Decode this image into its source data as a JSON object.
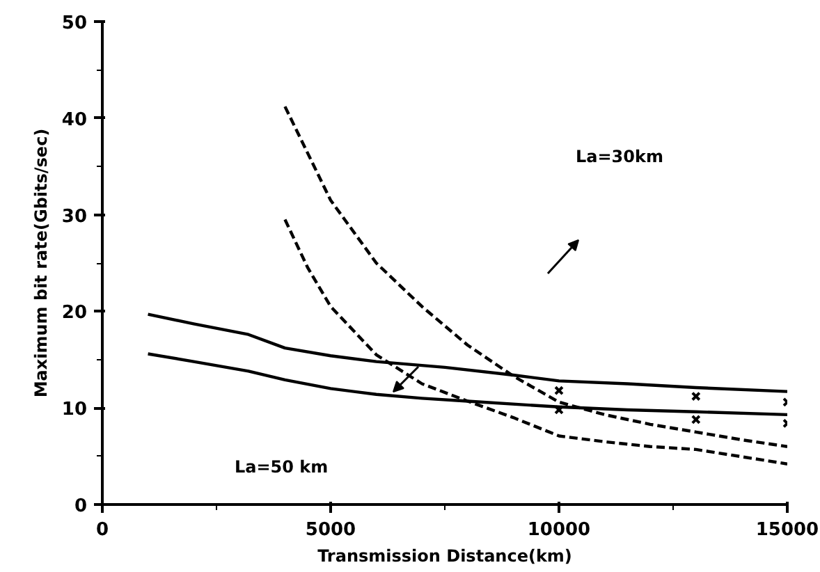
{
  "chart_data": {
    "type": "line",
    "xlabel": "Transmission Distance(km)",
    "ylabel": "Maximum bit rate(Gbits/sec)",
    "xlim": [
      0,
      15000
    ],
    "ylim": [
      0,
      50
    ],
    "xticks": [
      0,
      5000,
      10000,
      15000
    ],
    "yticks": [
      0,
      10,
      20,
      30,
      40,
      50
    ],
    "grid": false,
    "series": [
      {
        "color": "#000000",
        "line_style": "solid",
        "x": [
          1000,
          2000,
          3200,
          4000,
          5000,
          6000,
          7500,
          9000,
          10000,
          11500,
          13000,
          15000
        ],
        "values": [
          19.7,
          18.7,
          17.6,
          16.2,
          15.4,
          14.8,
          14.2,
          13.4,
          12.8,
          12.5,
          12.1,
          11.7
        ]
      },
      {
        "color": "#000000",
        "line_style": "solid",
        "x": [
          1000,
          2000,
          3200,
          4000,
          5000,
          6000,
          7000,
          8000,
          10000,
          11500,
          13000,
          15000
        ],
        "values": [
          15.6,
          14.8,
          13.8,
          12.9,
          12.0,
          11.4,
          11.0,
          10.7,
          10.1,
          9.8,
          9.6,
          9.3
        ]
      },
      {
        "color": "#000000",
        "line_style": "dashed",
        "x": [
          4000,
          5000,
          6000,
          7000,
          8000,
          9000,
          10000,
          11000,
          12000,
          13000,
          14000,
          15000
        ],
        "values": [
          41.2,
          31.5,
          25.0,
          20.5,
          16.5,
          13.3,
          10.6,
          9.3,
          8.3,
          7.5,
          6.7,
          6.0
        ]
      },
      {
        "color": "#000000",
        "line_style": "dashed",
        "x": [
          4000,
          4500,
          5000,
          6000,
          7000,
          8000,
          9000,
          10000,
          11000,
          12000,
          13000,
          15000
        ],
        "values": [
          29.5,
          24.5,
          20.5,
          15.5,
          12.5,
          10.7,
          9.0,
          7.1,
          6.5,
          6.0,
          5.7,
          4.2
        ]
      },
      {
        "type": "scatter",
        "marker": "cross",
        "color": "#000000",
        "x": [
          10000,
          10000,
          13000,
          13000,
          15000,
          15000
        ],
        "values": [
          11.8,
          9.8,
          11.2,
          8.8,
          10.6,
          8.4
        ]
      }
    ],
    "annotations": [
      "La=30km",
      "La=50 km"
    ]
  }
}
